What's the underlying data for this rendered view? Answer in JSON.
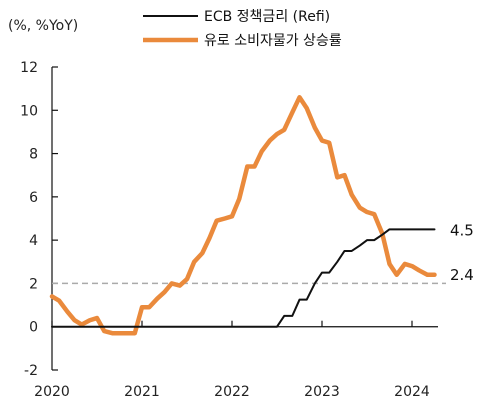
{
  "chart_data": {
    "type": "line",
    "unit_label": "(%, %YoY)",
    "ylim": [
      -2,
      12
    ],
    "yticks": [
      -2,
      0,
      2,
      4,
      6,
      8,
      10,
      12
    ],
    "xlim": [
      2020.0,
      2024.4
    ],
    "xticks": [
      {
        "label": "2020",
        "x": 2020.0
      },
      {
        "label": "2021",
        "x": 2021.0
      },
      {
        "label": "2022",
        "x": 2022.0
      },
      {
        "label": "2023",
        "x": 2023.0
      },
      {
        "label": "2024",
        "x": 2024.0
      }
    ],
    "grid": false,
    "legend_position": "top-center",
    "reference_line": {
      "y": 2,
      "color": "#aaaaaa",
      "style": "dashed"
    },
    "series": [
      {
        "name": "ECB 정책금리 (Refi)",
        "color": "#111111",
        "end_label": "4.5",
        "points": [
          [
            2020.0,
            0
          ],
          [
            2022.5,
            0
          ],
          [
            2022.58,
            0.5
          ],
          [
            2022.67,
            0.5
          ],
          [
            2022.75,
            1.25
          ],
          [
            2022.83,
            1.25
          ],
          [
            2022.92,
            2.0
          ],
          [
            2023.0,
            2.5
          ],
          [
            2023.08,
            2.5
          ],
          [
            2023.17,
            3.0
          ],
          [
            2023.25,
            3.5
          ],
          [
            2023.33,
            3.5
          ],
          [
            2023.42,
            3.75
          ],
          [
            2023.5,
            4.0
          ],
          [
            2023.58,
            4.0
          ],
          [
            2023.67,
            4.25
          ],
          [
            2023.75,
            4.5
          ],
          [
            2024.0,
            4.5
          ],
          [
            2024.25,
            4.5
          ]
        ]
      },
      {
        "name": "유로 소비자물가 상승률",
        "color": "#ea8a3c",
        "end_label": "2.4",
        "points": [
          [
            2020.0,
            1.4
          ],
          [
            2020.08,
            1.2
          ],
          [
            2020.17,
            0.7
          ],
          [
            2020.25,
            0.3
          ],
          [
            2020.33,
            0.1
          ],
          [
            2020.42,
            0.3
          ],
          [
            2020.5,
            0.4
          ],
          [
            2020.58,
            -0.2
          ],
          [
            2020.67,
            -0.3
          ],
          [
            2020.75,
            -0.3
          ],
          [
            2020.83,
            -0.3
          ],
          [
            2020.92,
            -0.3
          ],
          [
            2021.0,
            0.9
          ],
          [
            2021.08,
            0.9
          ],
          [
            2021.17,
            1.3
          ],
          [
            2021.25,
            1.6
          ],
          [
            2021.33,
            2.0
          ],
          [
            2021.42,
            1.9
          ],
          [
            2021.5,
            2.2
          ],
          [
            2021.58,
            3.0
          ],
          [
            2021.67,
            3.4
          ],
          [
            2021.75,
            4.1
          ],
          [
            2021.83,
            4.9
          ],
          [
            2021.92,
            5.0
          ],
          [
            2022.0,
            5.1
          ],
          [
            2022.08,
            5.9
          ],
          [
            2022.17,
            7.4
          ],
          [
            2022.25,
            7.4
          ],
          [
            2022.33,
            8.1
          ],
          [
            2022.42,
            8.6
          ],
          [
            2022.5,
            8.9
          ],
          [
            2022.58,
            9.1
          ],
          [
            2022.67,
            9.9
          ],
          [
            2022.75,
            10.6
          ],
          [
            2022.83,
            10.1
          ],
          [
            2022.92,
            9.2
          ],
          [
            2023.0,
            8.6
          ],
          [
            2023.08,
            8.5
          ],
          [
            2023.17,
            6.9
          ],
          [
            2023.25,
            7.0
          ],
          [
            2023.33,
            6.1
          ],
          [
            2023.42,
            5.5
          ],
          [
            2023.5,
            5.3
          ],
          [
            2023.58,
            5.2
          ],
          [
            2023.67,
            4.3
          ],
          [
            2023.75,
            2.9
          ],
          [
            2023.83,
            2.4
          ],
          [
            2023.92,
            2.9
          ],
          [
            2024.0,
            2.8
          ],
          [
            2024.08,
            2.6
          ],
          [
            2024.17,
            2.4
          ],
          [
            2024.25,
            2.4
          ]
        ]
      }
    ]
  }
}
